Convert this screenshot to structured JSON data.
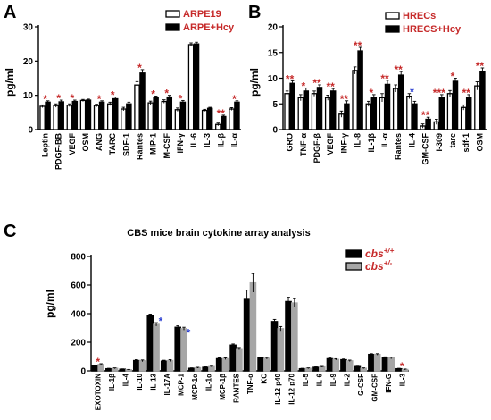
{
  "panels": [
    {
      "letter": "A",
      "ylabel": "pg/ml"
    },
    {
      "letter": "B",
      "ylabel": "pg/ml"
    },
    {
      "letter": "C",
      "ylabel": "pg/ml",
      "title": "CBS mice brain cytokine array analysis"
    }
  ],
  "colors": {
    "black": "#000000",
    "grey": "#a6a6a6",
    "white": "#ffffff",
    "star_red": "#c62a2a",
    "star_blue": "#2b3fd1",
    "legend_red_text": "#c62a2a"
  },
  "chart_data": [
    {
      "type": "bar",
      "categories": [
        "Leptin",
        "PDGF-BB",
        "VEGF",
        "OSM",
        "ANG",
        "TARC",
        "SDF-1",
        "Rantes",
        "MIP-1",
        "M-CSF",
        "IFN-γ",
        "IL-6",
        "IL-3",
        "IL-β",
        "IL-α"
      ],
      "series": [
        {
          "name": "ARPE19",
          "values": [
            6.8,
            7.0,
            7.1,
            8.5,
            7.0,
            7.5,
            6.0,
            13.0,
            7.8,
            8.2,
            5.8,
            24.8,
            5.6,
            1.5,
            6.0
          ]
        },
        {
          "name": "ARPE+Hcy",
          "values": [
            8.0,
            8.1,
            8.2,
            8.6,
            8.0,
            9.0,
            7.5,
            16.5,
            9.3,
            9.5,
            8.0,
            25.0,
            6.2,
            3.8,
            8.0
          ]
        }
      ],
      "significance": [
        "*",
        "*",
        "*",
        "",
        "*",
        "*",
        "",
        "*",
        "*",
        "*",
        "*",
        "",
        "",
        "**",
        "*"
      ],
      "error": [
        0.4,
        0.5,
        0.4,
        0.3,
        0.4,
        0.5,
        0.5,
        1.0,
        0.5,
        0.5,
        0.5,
        0.5,
        0.3,
        0.4,
        0.4
      ],
      "ylim": [
        0,
        30
      ],
      "yticks": [
        0,
        10,
        20,
        30
      ],
      "ylabel": "pg/ml",
      "legend_position": "top-right"
    },
    {
      "type": "bar",
      "categories": [
        "GRO",
        "TNF-α",
        "PDGF-β",
        "VEGF",
        "INF-γ",
        "IL-8",
        "IL-1β",
        "IL-α",
        "Rantes",
        "IL-4",
        "GM-CSF",
        "I-309",
        "tarc",
        "sdf-1",
        "OSM"
      ],
      "series": [
        {
          "name": "HRECs",
          "values": [
            7.0,
            6.2,
            7.0,
            6.2,
            3.0,
            11.5,
            5.0,
            6.2,
            8.0,
            6.5,
            0.7,
            1.5,
            7.0,
            4.3,
            8.5
          ]
        },
        {
          "name": "HRECS+Hcy",
          "values": [
            9.0,
            7.5,
            8.2,
            7.5,
            5.0,
            15.3,
            6.3,
            8.8,
            10.6,
            5.0,
            2.0,
            6.3,
            9.4,
            6.3,
            11.2
          ]
        }
      ],
      "significance": [
        "**",
        "*",
        "**",
        "**",
        "**",
        "**",
        "*",
        "**",
        "**",
        "*",
        "**",
        "***",
        "*",
        "**",
        "**"
      ],
      "significance_colors": [
        "red",
        "red",
        "red",
        "red",
        "red",
        "red",
        "red",
        "red",
        "red",
        "blue",
        "red",
        "red",
        "red",
        "red",
        "red"
      ],
      "error": [
        0.5,
        0.6,
        0.5,
        0.5,
        0.6,
        0.7,
        0.5,
        0.8,
        0.7,
        0.5,
        0.4,
        0.5,
        0.6,
        0.5,
        0.8
      ],
      "ylim": [
        0,
        20
      ],
      "yticks": [
        0,
        5,
        10,
        15,
        20
      ],
      "ylabel": "pg/ml",
      "legend_position": "top-right"
    },
    {
      "type": "bar",
      "title": "CBS mice brain cytokine array analysis",
      "categories": [
        "EXOTOXIN",
        "IL-1β",
        "IL-4",
        "IL-10",
        "IL-13",
        "IL-17A",
        "MCP-1",
        "MCP-1α",
        "IL-1α",
        "MCP-1β",
        "RANTES",
        "TNF-α",
        "KC",
        "IL-12 p40",
        "IL-12 p70",
        "IL-5",
        "IL-6",
        "IL-9",
        "IL-2",
        "G-CSF",
        "GM-CSF",
        "IFN-G",
        "IL-3"
      ],
      "series": [
        {
          "name": "cbs+/+",
          "values": [
            35,
            15,
            12,
            72,
            385,
            68,
            305,
            18,
            25,
            85,
            180,
            500,
            90,
            345,
            485,
            15,
            25,
            85,
            78,
            30,
            115,
            92,
            15
          ]
        },
        {
          "name": "cbs+/-",
          "values": [
            45,
            18,
            8,
            70,
            325,
            72,
            295,
            22,
            30,
            85,
            155,
            615,
            88,
            295,
            475,
            18,
            28,
            80,
            70,
            18,
            115,
            90,
            10
          ]
        }
      ],
      "significance": [
        "*",
        "",
        "",
        "",
        "*",
        "",
        "*",
        "",
        "",
        "",
        "",
        "",
        "",
        "",
        "",
        "",
        "",
        "",
        "",
        "",
        "",
        "",
        "*"
      ],
      "significance_colors": [
        "red",
        "",
        "",
        "",
        "blue",
        "",
        "blue",
        "",
        "",
        "",
        "",
        "",
        "",
        "",
        "",
        "",
        "",
        "",
        "",
        "",
        "",
        "",
        "red"
      ],
      "error": [
        5,
        3,
        2,
        6,
        12,
        6,
        10,
        3,
        3,
        6,
        8,
        65,
        6,
        15,
        30,
        3,
        3,
        5,
        5,
        3,
        5,
        6,
        3
      ],
      "ylim": [
        0,
        800
      ],
      "yticks": [
        0,
        200,
        400,
        600,
        800
      ],
      "ylabel": "pg/ml",
      "legend_position": "top-right"
    }
  ]
}
